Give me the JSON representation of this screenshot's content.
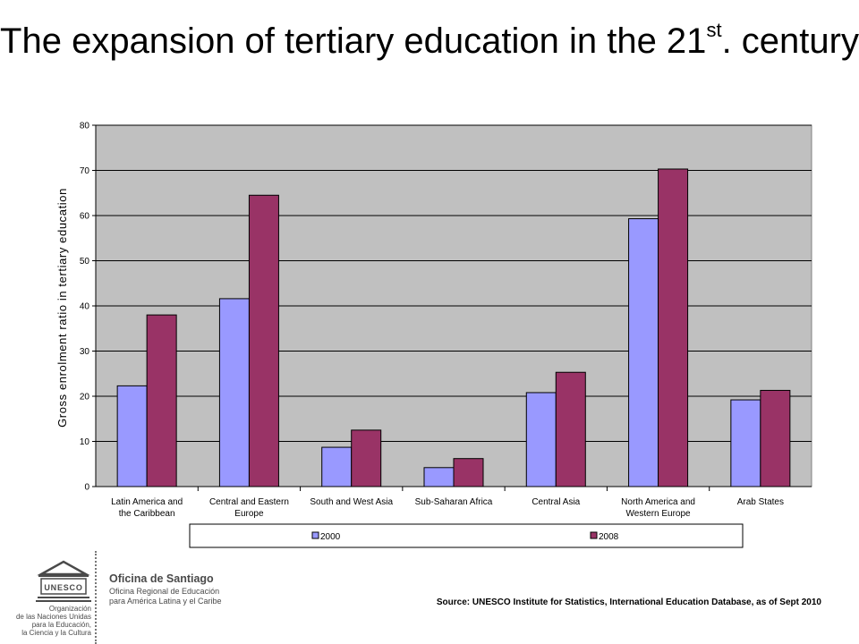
{
  "slide": {
    "title_main": "The expansion of tertiary education in the 21",
    "title_sup": "st",
    "title_end": ". century"
  },
  "chart_data": {
    "type": "bar",
    "ylabel": "Gross enrolment ratio in tertiary education",
    "ylim": [
      0,
      80
    ],
    "yticks": [
      0,
      10,
      20,
      30,
      40,
      50,
      60,
      70,
      80
    ],
    "grid": true,
    "legend_position": "bottom",
    "categories": [
      [
        "Latin America and",
        "the Caribbean"
      ],
      [
        "Central and Eastern",
        "Europe"
      ],
      [
        "South and West Asia"
      ],
      [
        "Sub-Saharan Africa"
      ],
      [
        "Central Asia"
      ],
      [
        "North America and",
        "Western Europe"
      ],
      [
        "Arab States"
      ]
    ],
    "series": [
      {
        "name": "2000",
        "color": "#9999ff",
        "values": [
          22.3,
          41.6,
          8.7,
          4.2,
          20.8,
          59.3,
          19.2
        ]
      },
      {
        "name": "2008",
        "color": "#993366",
        "values": [
          38.0,
          64.5,
          12.5,
          6.2,
          25.3,
          70.3,
          21.3
        ]
      }
    ],
    "plot_background": "#c0c0c0"
  },
  "logo": {
    "name": "Oficina de Santiago",
    "sub1": "Oficina Regional de Educación",
    "sub2": "para América Latina y el Caribe",
    "emblem_text": "UNESCO",
    "org_lines": [
      "Organización",
      "de las Naciones Unidas",
      "para la Educación,",
      "la Ciencia y la Cultura"
    ]
  },
  "source": "Source: UNESCO Institute for Statistics, International Education Database, as of Sept 2010"
}
